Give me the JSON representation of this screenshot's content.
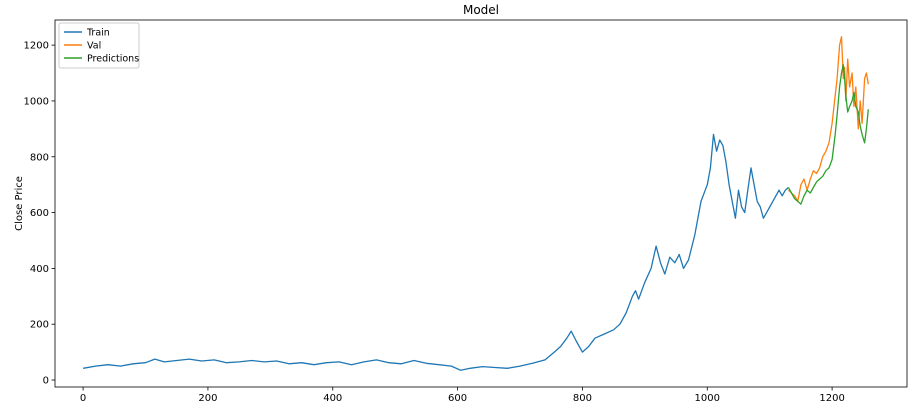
{
  "chart_data": {
    "type": "line",
    "title": "Model",
    "xlabel": "",
    "ylabel": "Close Price",
    "xlim": [
      -45,
      1320
    ],
    "ylim": [
      -25,
      1290
    ],
    "xticks": [
      0,
      200,
      400,
      600,
      800,
      1000,
      1200
    ],
    "yticks": [
      0,
      200,
      400,
      600,
      800,
      1000,
      1200
    ],
    "grid": false,
    "legend_position": "top-left",
    "series": [
      {
        "name": "Train",
        "color": "#1f77b4",
        "x": [
          0,
          20,
          40,
          60,
          80,
          100,
          115,
          130,
          150,
          170,
          190,
          210,
          230,
          250,
          270,
          290,
          310,
          330,
          350,
          370,
          390,
          410,
          430,
          450,
          470,
          490,
          510,
          530,
          550,
          570,
          590,
          605,
          620,
          640,
          660,
          680,
          700,
          720,
          740,
          755,
          765,
          775,
          782,
          790,
          800,
          810,
          820,
          835,
          850,
          860,
          870,
          880,
          885,
          890,
          900,
          910,
          918,
          925,
          932,
          940,
          948,
          955,
          962,
          970,
          980,
          990,
          1000,
          1005,
          1010,
          1015,
          1020,
          1025,
          1030,
          1035,
          1040,
          1045,
          1050,
          1055,
          1060,
          1065,
          1070,
          1075,
          1080,
          1085,
          1090,
          1095,
          1100,
          1105,
          1110,
          1115,
          1120,
          1125,
          1130
        ],
        "values": [
          42,
          50,
          55,
          50,
          58,
          62,
          75,
          65,
          70,
          75,
          68,
          72,
          62,
          65,
          70,
          65,
          68,
          58,
          62,
          55,
          62,
          65,
          55,
          65,
          72,
          62,
          58,
          70,
          60,
          55,
          50,
          35,
          42,
          48,
          45,
          42,
          50,
          60,
          72,
          100,
          120,
          150,
          175,
          140,
          100,
          120,
          150,
          165,
          180,
          200,
          240,
          300,
          320,
          290,
          350,
          400,
          480,
          420,
          380,
          440,
          420,
          450,
          400,
          430,
          520,
          640,
          700,
          760,
          880,
          820,
          860,
          840,
          780,
          700,
          640,
          580,
          680,
          620,
          600,
          680,
          760,
          700,
          640,
          620,
          580,
          600,
          620,
          640,
          660,
          680,
          660,
          680,
          690
        ]
      },
      {
        "name": "Val",
        "color": "#ff7f0e",
        "x": [
          1130,
          1140,
          1145,
          1150,
          1155,
          1160,
          1165,
          1170,
          1175,
          1180,
          1185,
          1190,
          1195,
          1200,
          1205,
          1208,
          1212,
          1215,
          1218,
          1220,
          1222,
          1225,
          1228,
          1232,
          1235,
          1238,
          1242,
          1245,
          1248,
          1252,
          1255,
          1258
        ],
        "values": [
          680,
          660,
          640,
          700,
          720,
          680,
          720,
          750,
          740,
          760,
          800,
          820,
          850,
          920,
          1020,
          1080,
          1200,
          1230,
          1080,
          1120,
          1000,
          1150,
          1050,
          1100,
          980,
          1050,
          900,
          1000,
          920,
          1080,
          1100,
          1060
        ]
      },
      {
        "name": "Predictions",
        "color": "#2ca02c",
        "x": [
          1130,
          1140,
          1145,
          1150,
          1155,
          1160,
          1165,
          1170,
          1175,
          1180,
          1185,
          1190,
          1195,
          1200,
          1205,
          1208,
          1212,
          1215,
          1218,
          1220,
          1222,
          1225,
          1228,
          1232,
          1235,
          1238,
          1242,
          1245,
          1248,
          1252,
          1255,
          1258
        ],
        "values": [
          690,
          650,
          640,
          630,
          660,
          680,
          670,
          690,
          710,
          720,
          730,
          750,
          760,
          790,
          880,
          950,
          1050,
          1100,
          1130,
          1080,
          1020,
          960,
          980,
          1000,
          1030,
          980,
          960,
          910,
          880,
          850,
          900,
          970
        ]
      }
    ]
  }
}
